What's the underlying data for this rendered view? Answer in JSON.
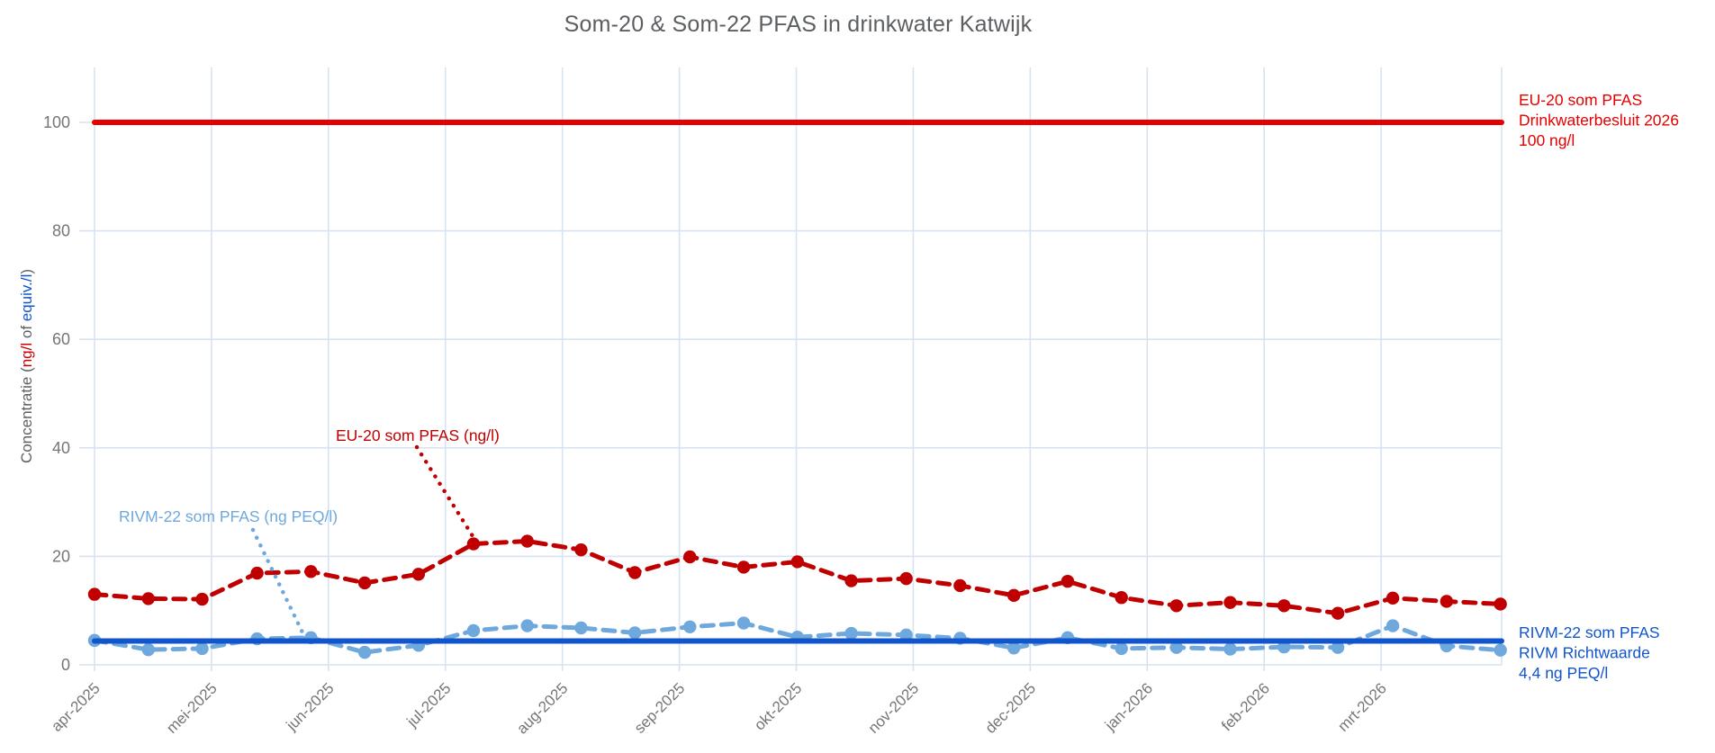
{
  "chart_data": {
    "type": "line",
    "title": "Som-20 & Som-22 PFAS in drinkwater Katwijk",
    "grid": true,
    "legend_position": "none",
    "x_axis": {
      "tick_labels": [
        "apr-2025",
        "mei-2025",
        "jun-2025",
        "jul-2025",
        "aug-2025",
        "sep-2025",
        "okt-2025",
        "nov-2025",
        "dec-2025",
        "jan-2026",
        "feb-2026",
        "mrt-2026"
      ],
      "tick_rotation_deg": -45
    },
    "y_axis": {
      "ticks": [
        0,
        20,
        40,
        60,
        80,
        100
      ],
      "range": [
        0,
        110
      ],
      "label_parts": [
        {
          "text": "Concentratie (",
          "color": "#5c5f62"
        },
        {
          "text": "ng/l",
          "color": "#cc0000"
        },
        {
          "text": " of ",
          "color": "#5c5f62"
        },
        {
          "text": "equiv./l",
          "color": "#1155cc"
        },
        {
          "text": ")",
          "color": "#5c5f62"
        }
      ]
    },
    "x_months": [
      0,
      0.46,
      0.92,
      1.39,
      1.85,
      2.31,
      2.77,
      3.24,
      3.7,
      4.16,
      4.62,
      5.09,
      5.55,
      6.01,
      6.47,
      6.94,
      7.4,
      7.86,
      8.32,
      8.78,
      9.25,
      9.71,
      10.17,
      10.63,
      11.1,
      11.56,
      12.02
    ],
    "series": [
      {
        "id": "eu20",
        "name": "EU-20 som PFAS (ng/l)",
        "color": "#c00000",
        "style": "dashed",
        "marker": "circle",
        "values": [
          13.0,
          12.2,
          12.1,
          16.9,
          17.2,
          15.1,
          16.7,
          22.3,
          22.8,
          21.2,
          17.0,
          19.9,
          18.0,
          19.0,
          15.5,
          15.9,
          14.6,
          12.8,
          15.4,
          12.4,
          10.9,
          11.5,
          10.9,
          9.5,
          12.3,
          11.7,
          11.2
        ]
      },
      {
        "id": "rivm22",
        "name": "RIVM-22 som PFAS (ng PEQ/l)",
        "color": "#6fa8dc",
        "style": "dashed",
        "marker": "circle",
        "values": [
          4.5,
          2.8,
          3.0,
          4.8,
          5.0,
          2.3,
          3.6,
          6.3,
          7.2,
          6.8,
          5.9,
          7.0,
          7.7,
          5.1,
          5.8,
          5.5,
          4.9,
          3.1,
          5.0,
          3.0,
          3.2,
          2.9,
          3.3,
          3.2,
          7.2,
          3.5,
          2.7
        ]
      }
    ],
    "reference_lines": [
      {
        "id": "eu20-limit",
        "value": 100,
        "color": "#e60000",
        "label_lines": [
          "EU-20 som PFAS",
          "Drinkwaterbesluit 2026",
          "100 ng/l"
        ]
      },
      {
        "id": "rivm22-limit",
        "value": 4.4,
        "color": "#1155cc",
        "label_lines": [
          "RIVM-22 som PFAS",
          "RIVM Richtwaarde",
          "4,4 ng PEQ/l"
        ]
      }
    ],
    "annotations": [
      {
        "id": "eu20",
        "text": "EU-20 som PFAS (ng/l)",
        "color": "#c00000"
      },
      {
        "id": "rivm22",
        "text": "RIVM-22 som PFAS (ng PEQ/l)",
        "color": "#6fa8dc"
      }
    ],
    "colors": {
      "gridline": "#d7e3f1",
      "tick_text": "#757575",
      "title_text": "#5c5f62"
    }
  }
}
